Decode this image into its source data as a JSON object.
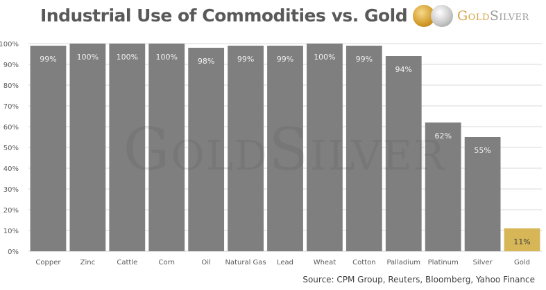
{
  "chart_data": {
    "type": "bar",
    "title": "Industrial Use of Commodities vs. Gold",
    "xlabel": "",
    "ylabel": "",
    "ylim": [
      0,
      100
    ],
    "y_unit": "%",
    "y_ticks": [
      "0%",
      "10%",
      "20%",
      "30%",
      "40%",
      "50%",
      "60%",
      "70%",
      "80%",
      "90%",
      "100%"
    ],
    "grid": true,
    "legend": "none",
    "categories": [
      "Copper",
      "Zinc",
      "Cattle",
      "Corn",
      "Oil",
      "Natural Gas",
      "Lead",
      "Wheat",
      "Cotton",
      "Palladium",
      "Platinum",
      "Silver",
      "Gold"
    ],
    "values": [
      99,
      100,
      100,
      100,
      98,
      99,
      99,
      100,
      99,
      94,
      62,
      55,
      11
    ],
    "data_labels": [
      "99%",
      "100%",
      "100%",
      "100%",
      "98%",
      "99%",
      "99%",
      "100%",
      "99%",
      "94%",
      "62%",
      "55%",
      "11%"
    ],
    "colors": {
      "default": "#7f7f7f",
      "highlight": "#d6b656",
      "highlight_category": "Gold"
    },
    "source": "Source: CPM Group, Reuters, Bloomberg, Yahoo Finance",
    "watermark": "GoldSilver"
  },
  "logo": {
    "gold_part": "Gold",
    "silver_part": "Silver"
  }
}
